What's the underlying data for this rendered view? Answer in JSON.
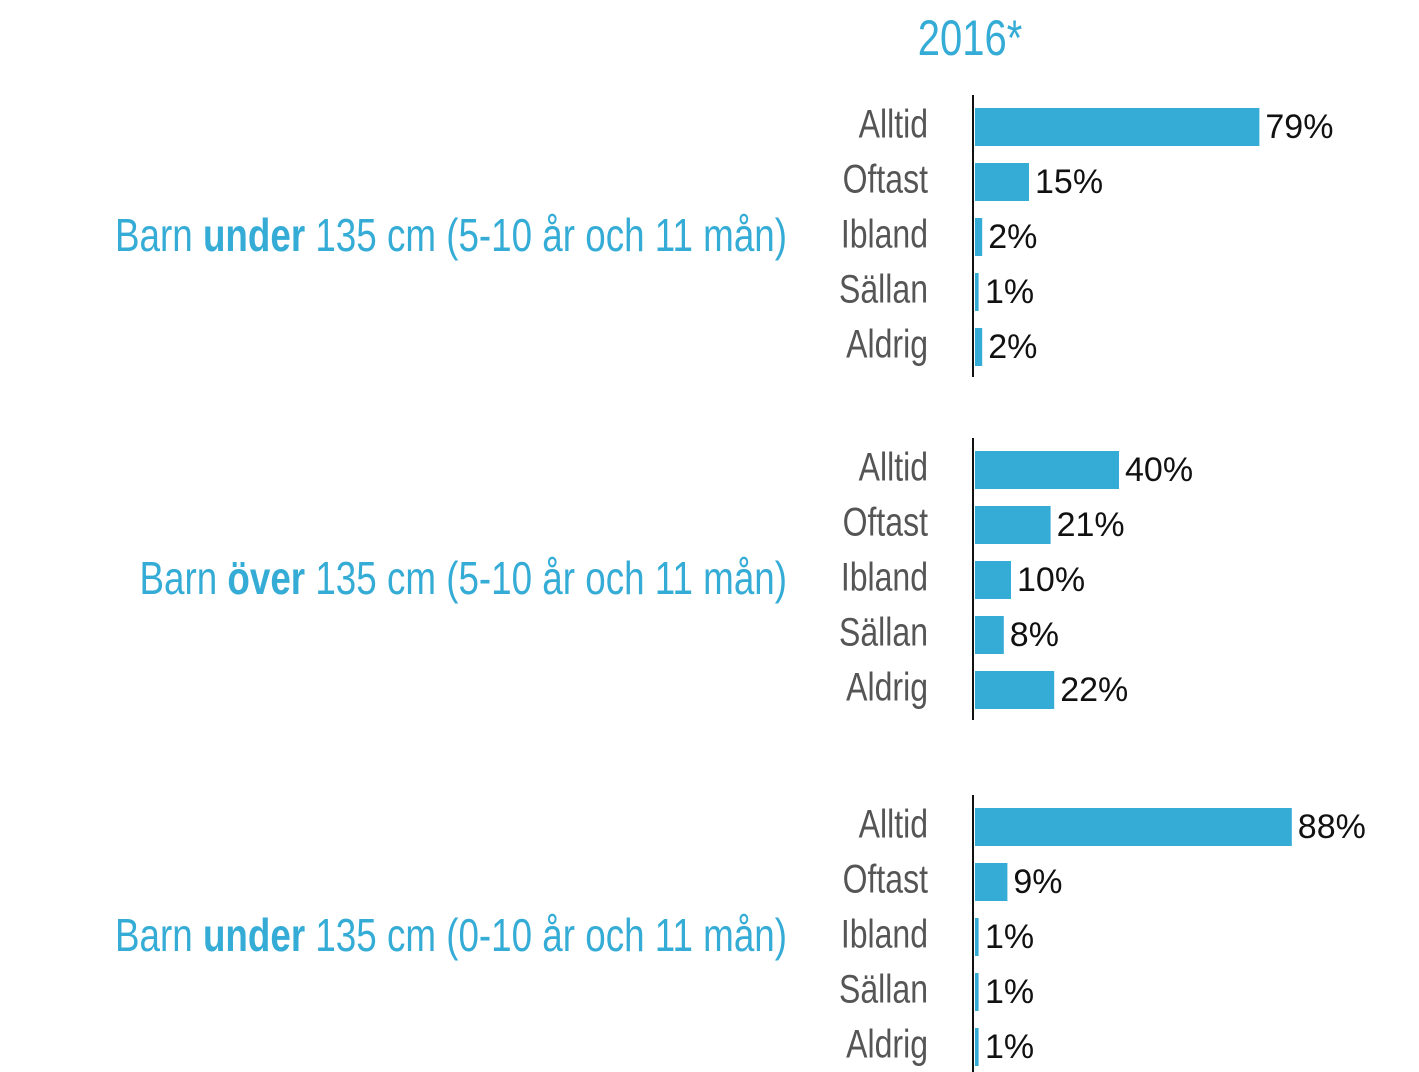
{
  "header": {
    "title": "2016*"
  },
  "chart_data": [
    {
      "type": "bar",
      "orientation": "horizontal",
      "title": [
        "Barn ",
        "under",
        " 135 cm (5-10 år och 11 mån)"
      ],
      "categories": [
        "Alltid",
        "Oftast",
        "Ibland",
        "Sällan",
        "Aldrig"
      ],
      "values": [
        79,
        15,
        2,
        1,
        2
      ],
      "value_labels": [
        "79%",
        "15%",
        "2%",
        "1%",
        "2%"
      ],
      "color": "#35acd6",
      "xlim": [
        0,
        100
      ]
    },
    {
      "type": "bar",
      "orientation": "horizontal",
      "title": [
        "Barn ",
        "över",
        " 135 cm (5-10 år och 11 mån)"
      ],
      "categories": [
        "Alltid",
        "Oftast",
        "Ibland",
        "Sällan",
        "Aldrig"
      ],
      "values": [
        40,
        21,
        10,
        8,
        22
      ],
      "value_labels": [
        "40%",
        "21%",
        "10%",
        "8%",
        "22%"
      ],
      "color": "#35acd6",
      "xlim": [
        0,
        100
      ]
    },
    {
      "type": "bar",
      "orientation": "horizontal",
      "title": [
        "Barn ",
        "under",
        " 135 cm (0-10 år och 11 mån)"
      ],
      "categories": [
        "Alltid",
        "Oftast",
        "Ibland",
        "Sällan",
        "Aldrig"
      ],
      "values": [
        88,
        9,
        1,
        1,
        1
      ],
      "value_labels": [
        "88%",
        "9%",
        "1%",
        "1%",
        "1%"
      ],
      "color": "#35acd6",
      "xlim": [
        0,
        100
      ]
    }
  ]
}
